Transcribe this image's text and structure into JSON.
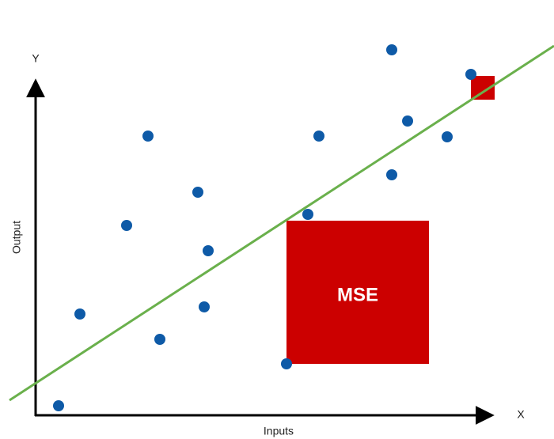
{
  "axes": {
    "y_label": "Y",
    "x_label": "X",
    "y_title": "Output",
    "x_title": "Inputs"
  },
  "annotation": {
    "label": "MSE"
  }
}
